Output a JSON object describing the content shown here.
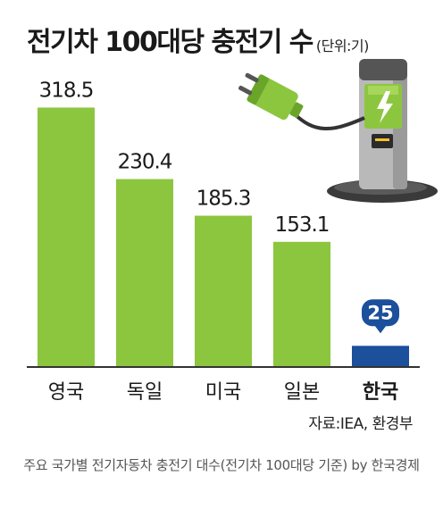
{
  "chart_data": {
    "type": "bar",
    "title": "전기차 100대당 충전기 수",
    "unit": "(단위:기)",
    "categories": [
      "영국",
      "독일",
      "미국",
      "일본",
      "한국"
    ],
    "values": [
      318.5,
      230.4,
      185.3,
      153.1,
      25
    ],
    "value_labels": [
      "318.5",
      "230.4",
      "185.3",
      "153.1",
      "25"
    ],
    "highlight": "한국",
    "ylim": [
      0,
      330
    ],
    "grid": false,
    "legend": "none"
  },
  "source": "자료:IEA, 환경부",
  "caption": "주요 국가별 전기자동차 충전기 대수(전기차 100대당 기준) by 한국경제",
  "colors": {
    "bar": "#8cc63f",
    "highlight_bar": "#1c4f9c",
    "highlight_label_bg": "#1c4f9c",
    "baseline": "#333333",
    "charger_body": "#b9b9b9",
    "charger_cap": "#555555",
    "charger_panel": "#8cc63f"
  },
  "icons": [
    "ev-charger-icon",
    "charging-plug-icon",
    "lightning-bolt-icon"
  ]
}
